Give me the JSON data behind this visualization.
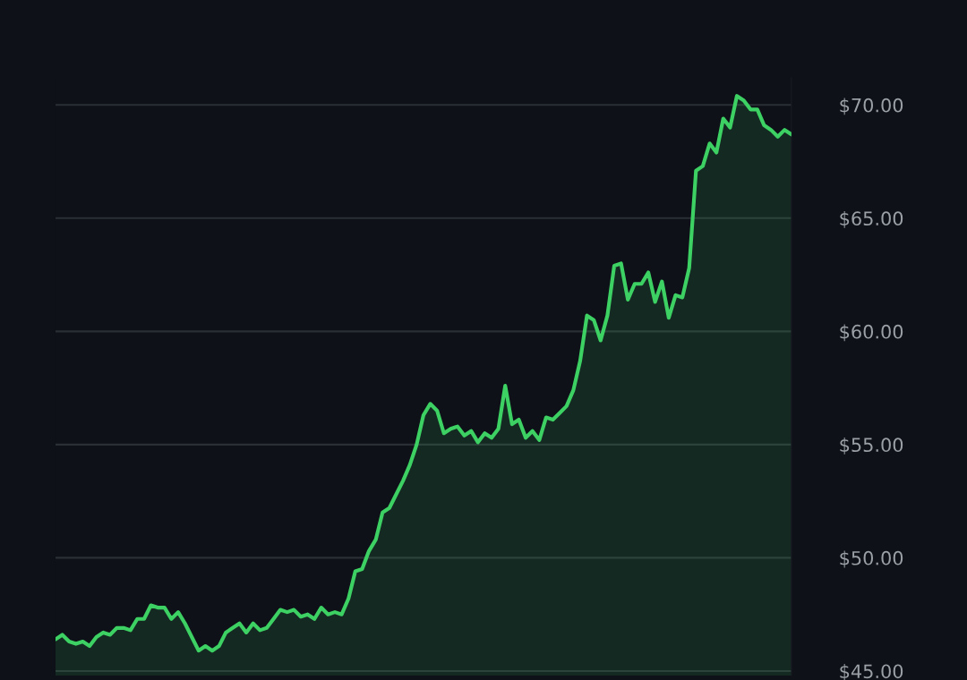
{
  "chart_data": {
    "type": "area",
    "categories": [
      null,
      null,
      null,
      null,
      null,
      null,
      null,
      null,
      null,
      null,
      null,
      null,
      null,
      null,
      null,
      null,
      null,
      null,
      null,
      null,
      null,
      null,
      null,
      null,
      null,
      null,
      null,
      null,
      null,
      null,
      null,
      null,
      null,
      null,
      null,
      null,
      null,
      null,
      null,
      null,
      null,
      null,
      null,
      null,
      null,
      null,
      null,
      null,
      null,
      null,
      null,
      null,
      null,
      null,
      null,
      null,
      null,
      null,
      null,
      null,
      null,
      null,
      null,
      null,
      null,
      null,
      null,
      null,
      null,
      null,
      null,
      null,
      null,
      null,
      null,
      null,
      null,
      null,
      null,
      null,
      null,
      null,
      null,
      null,
      null,
      null,
      null,
      null,
      null,
      null,
      null,
      null,
      null,
      null,
      null,
      null,
      null,
      null,
      null,
      null,
      null,
      null,
      null,
      null,
      null,
      null,
      null,
      null,
      null
    ],
    "series": [
      {
        "color": "#3dd164",
        "values": [
          46.4,
          46.6,
          46.3,
          46.2,
          46.3,
          46.1,
          46.5,
          46.7,
          46.6,
          46.9,
          46.9,
          46.8,
          47.3,
          47.3,
          47.9,
          47.8,
          47.8,
          47.3,
          47.6,
          47.1,
          46.5,
          45.9,
          46.1,
          45.9,
          46.1,
          46.7,
          46.9,
          47.1,
          46.7,
          47.1,
          46.8,
          46.9,
          47.3,
          47.7,
          47.6,
          47.7,
          47.4,
          47.5,
          47.3,
          47.8,
          47.5,
          47.6,
          47.5,
          48.2,
          49.4,
          49.5,
          50.3,
          50.8,
          52.0,
          52.2,
          52.8,
          53.4,
          54.1,
          55.0,
          56.3,
          56.8,
          56.5,
          55.5,
          55.7,
          55.8,
          55.4,
          55.6,
          55.1,
          55.5,
          55.3,
          55.7,
          57.6,
          55.9,
          56.1,
          55.3,
          55.6,
          55.2,
          56.2,
          56.1,
          56.4,
          56.7,
          57.4,
          58.7,
          60.7,
          60.5,
          59.6,
          60.7,
          62.9,
          63.0,
          61.4,
          62.1,
          62.1,
          62.6,
          61.3,
          62.2,
          60.6,
          61.6,
          61.5,
          62.8,
          67.1,
          67.3,
          68.3,
          67.9,
          69.4,
          69.0,
          70.4,
          70.2,
          69.8,
          69.8,
          69.1,
          68.9,
          68.6,
          68.9,
          68.7
        ]
      }
    ],
    "ylim": [
      44.8,
      71.2
    ],
    "yticks": [
      {
        "value": 45,
        "label": "$45.00"
      },
      {
        "value": 50,
        "label": "$50.00"
      },
      {
        "value": 55,
        "label": "$55.00"
      },
      {
        "value": 60,
        "label": "$60.00"
      },
      {
        "value": 65,
        "label": "$65.00"
      },
      {
        "value": 70,
        "label": "$70.00"
      }
    ],
    "grid": "y",
    "tick_labels": "y"
  }
}
